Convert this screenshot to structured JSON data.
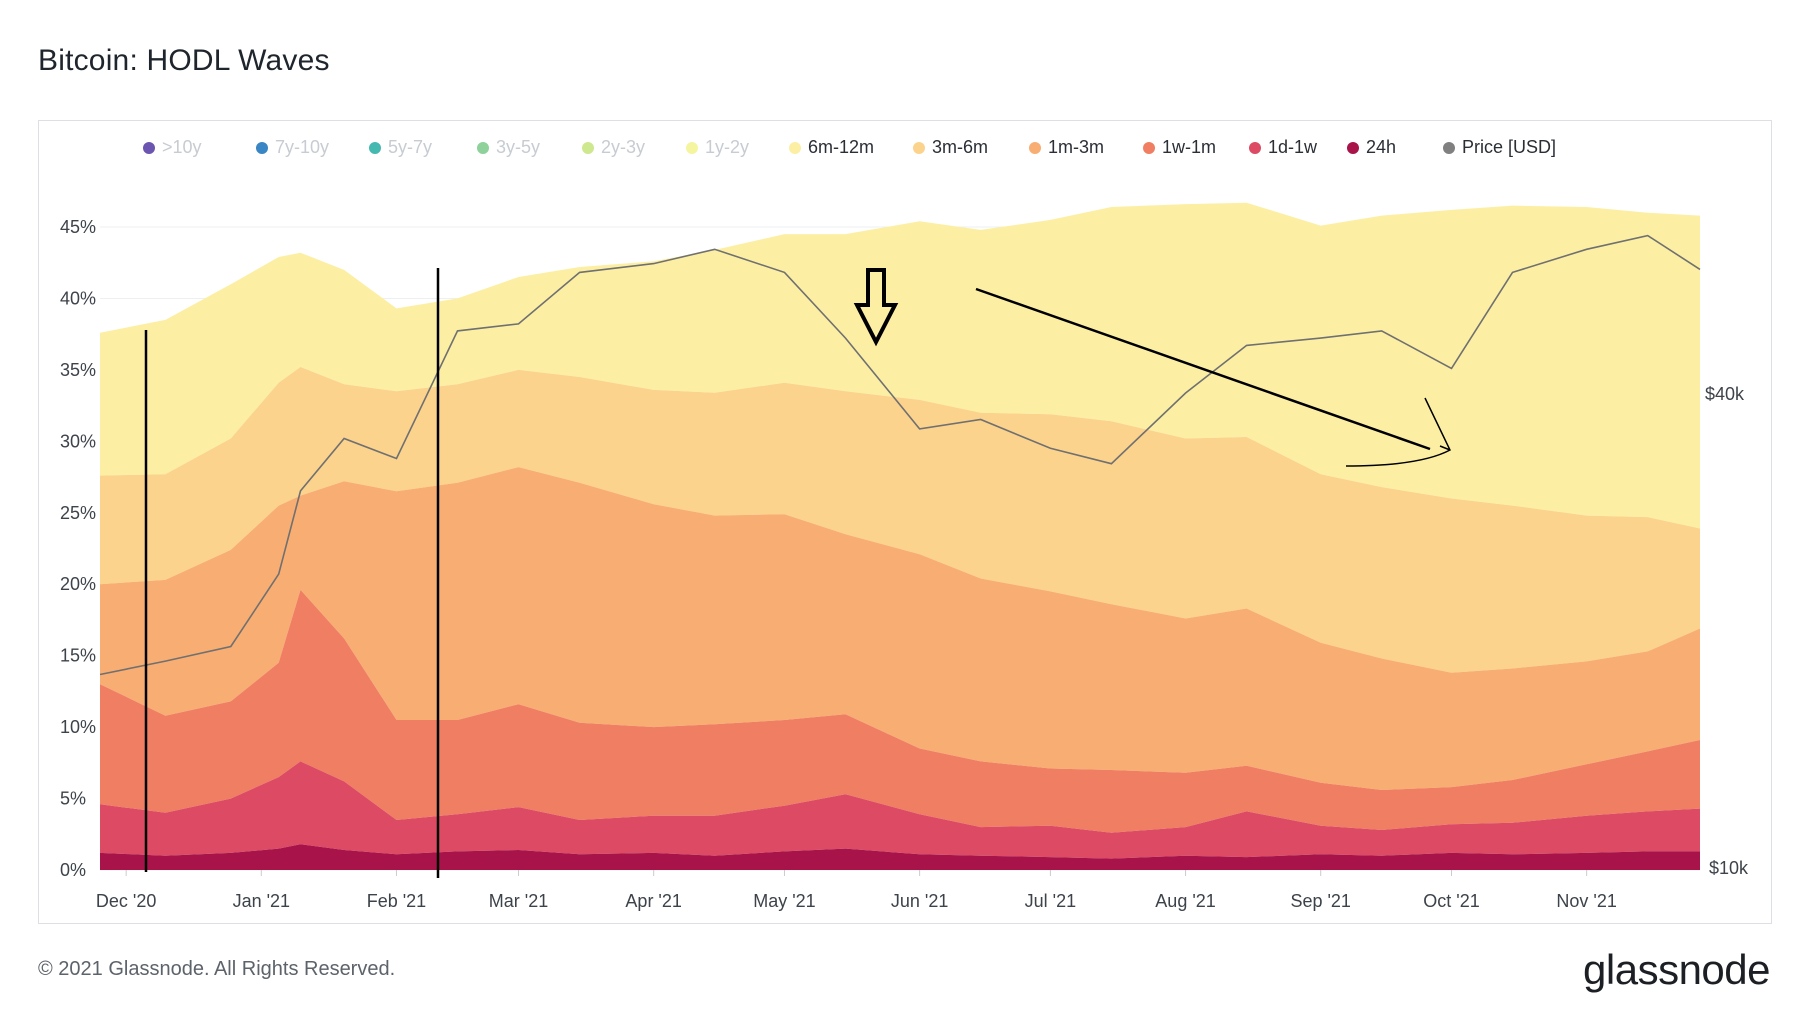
{
  "title": "Bitcoin: HODL Waves",
  "footer": "© 2021 Glassnode. All Rights Reserved.",
  "brand": "glassnode",
  "watermark": "glassnode",
  "legend": [
    {
      "label": ">10y",
      "color": "#6b55b0",
      "enabled": false
    },
    {
      "label": "7y-10y",
      "color": "#3a85c4",
      "enabled": false
    },
    {
      "label": "5y-7y",
      "color": "#45b8b0",
      "enabled": false
    },
    {
      "label": "3y-5y",
      "color": "#8fd19a",
      "enabled": false
    },
    {
      "label": "2y-3y",
      "color": "#cde88e",
      "enabled": false
    },
    {
      "label": "1y-2y",
      "color": "#f5f5a0",
      "enabled": false
    },
    {
      "label": "6m-12m",
      "color": "#fcefa4",
      "enabled": true
    },
    {
      "label": "3m-6m",
      "color": "#fbd38d",
      "enabled": true
    },
    {
      "label": "1m-3m",
      "color": "#f8ad72",
      "enabled": true
    },
    {
      "label": "1w-1m",
      "color": "#ef7e63",
      "enabled": true
    },
    {
      "label": "1d-1w",
      "color": "#dc4a63",
      "enabled": true
    },
    {
      "label": "24h",
      "color": "#a8144a",
      "enabled": true
    },
    {
      "label": "Price [USD]",
      "color": "#808080",
      "enabled": true
    }
  ],
  "chart_data": {
    "type": "area",
    "stacked": true,
    "x_tick_labels": [
      "Dec '20",
      "Jan '21",
      "Feb '21",
      "Mar '21",
      "Apr '21",
      "May '21",
      "Jun '21",
      "Jul '21",
      "Aug '21",
      "Sep '21",
      "Oct '21",
      "Nov '21"
    ],
    "y_left": {
      "ticks": [
        "0%",
        "5%",
        "10%",
        "15%",
        "20%",
        "25%",
        "30%",
        "35%",
        "40%",
        "45%"
      ],
      "range": [
        0,
        45
      ]
    },
    "y_right": {
      "ticks": [
        "$10k",
        "$40k"
      ],
      "scale": "log"
    },
    "grid": true,
    "legend_position": "top",
    "x": [
      "2020-11-25",
      "2020-12-10",
      "2020-12-25",
      "2021-01-05",
      "2021-01-10",
      "2021-01-20",
      "2021-02-01",
      "2021-02-15",
      "2021-03-01",
      "2021-03-15",
      "2021-04-01",
      "2021-04-15",
      "2021-05-01",
      "2021-05-15",
      "2021-06-01",
      "2021-06-15",
      "2021-07-01",
      "2021-07-15",
      "2021-08-01",
      "2021-08-15",
      "2021-09-01",
      "2021-09-15",
      "2021-10-01",
      "2021-10-15",
      "2021-11-01",
      "2021-11-15",
      "2021-11-27"
    ],
    "series": [
      {
        "name": "24h",
        "color": "#a8144a",
        "values": [
          1.2,
          1.0,
          1.2,
          1.5,
          1.8,
          1.4,
          1.1,
          1.3,
          1.4,
          1.1,
          1.2,
          1.0,
          1.3,
          1.5,
          1.1,
          1.0,
          0.9,
          0.8,
          1.0,
          0.9,
          1.1,
          1.0,
          1.2,
          1.1,
          1.2,
          1.3,
          1.3
        ]
      },
      {
        "name": "1d-1w",
        "color": "#dc4a63",
        "values": [
          3.4,
          3.0,
          3.8,
          5.0,
          5.8,
          4.8,
          2.4,
          2.6,
          3.0,
          2.4,
          2.6,
          2.8,
          3.2,
          3.8,
          2.8,
          2.0,
          2.2,
          1.8,
          2.0,
          3.2,
          2.0,
          1.8,
          2.0,
          2.2,
          2.6,
          2.8,
          3.0
        ]
      },
      {
        "name": "1w-1m",
        "color": "#ef7e63",
        "values": [
          8.4,
          6.8,
          6.8,
          8.0,
          12.0,
          10.0,
          7.0,
          6.6,
          7.2,
          6.8,
          6.2,
          6.4,
          6.0,
          5.6,
          4.6,
          4.6,
          4.0,
          4.4,
          3.8,
          3.2,
          3.0,
          2.8,
          2.6,
          3.0,
          3.6,
          4.2,
          4.8
        ]
      },
      {
        "name": "1m-3m",
        "color": "#f8ad72",
        "values": [
          7.0,
          9.5,
          10.6,
          11.0,
          6.6,
          11.0,
          16.0,
          16.6,
          16.6,
          16.8,
          15.6,
          14.6,
          14.4,
          12.6,
          13.6,
          12.8,
          12.4,
          11.6,
          10.8,
          11.0,
          9.8,
          9.2,
          8.0,
          7.8,
          7.2,
          7.0,
          7.8
        ]
      },
      {
        "name": "3m-6m",
        "color": "#fbd38d",
        "values": [
          7.6,
          7.4,
          7.8,
          8.6,
          9.0,
          6.8,
          7.0,
          6.9,
          6.8,
          7.4,
          8.0,
          8.6,
          9.2,
          10.0,
          10.8,
          11.6,
          12.4,
          12.8,
          12.6,
          12.0,
          11.8,
          12.0,
          12.2,
          11.4,
          10.2,
          9.4,
          7.0
        ]
      },
      {
        "name": "6m-12m",
        "color": "#fcefa4",
        "values": [
          10.0,
          10.8,
          10.8,
          8.8,
          8.0,
          8.0,
          5.8,
          6.0,
          6.5,
          7.7,
          9.0,
          10.0,
          10.4,
          11.0,
          12.5,
          12.8,
          13.6,
          15.0,
          16.4,
          16.4,
          17.4,
          19.0,
          20.2,
          21.0,
          21.6,
          21.3,
          21.9
        ]
      }
    ],
    "price_usd": [
      17500,
      18200,
      19000,
      23500,
      30000,
      35000,
      33000,
      48000,
      49000,
      57000,
      58500,
      61000,
      57000,
      47000,
      36000,
      37000,
      34000,
      32500,
      40000,
      46000,
      47000,
      48000,
      43000,
      57000,
      61000,
      63500,
      57500
    ]
  }
}
